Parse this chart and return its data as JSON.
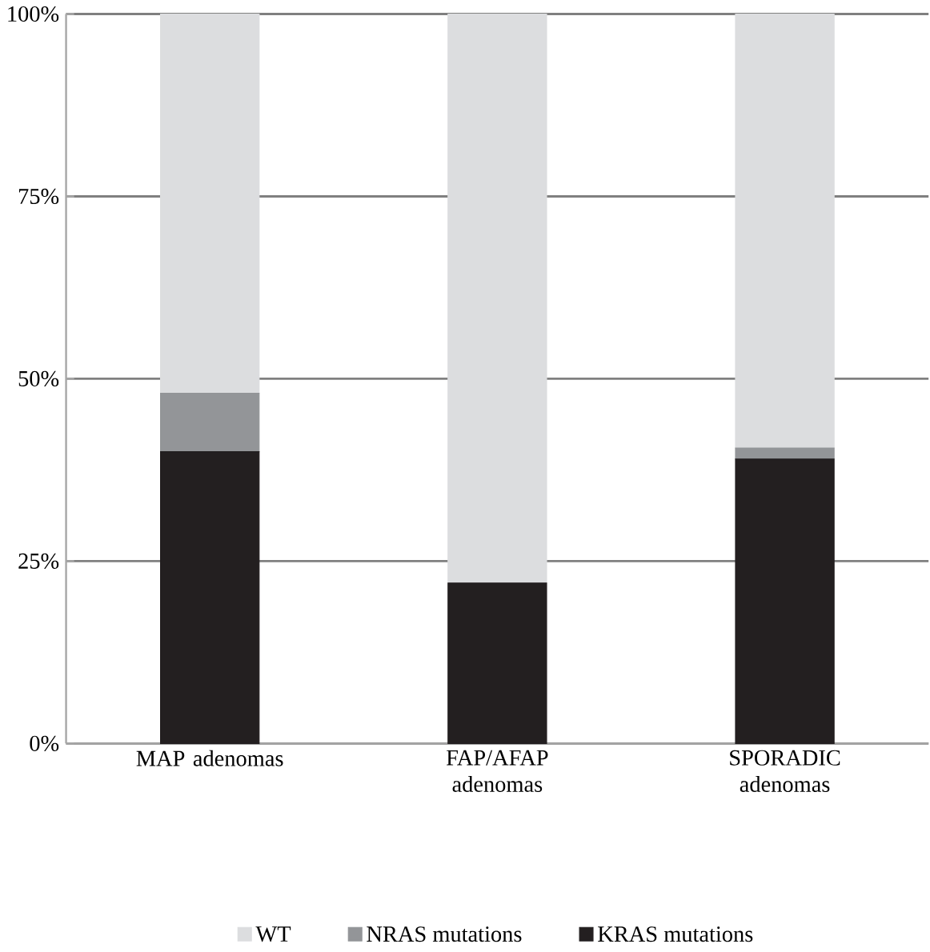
{
  "chart_data": {
    "type": "bar",
    "stacked": true,
    "categories": [
      "MAP adenomas",
      "FAP/AFAP adenomas",
      "SPORADIC adenomas"
    ],
    "series": [
      {
        "name": "KRAS mutations",
        "color": "#231f20",
        "values": [
          40,
          22,
          39
        ]
      },
      {
        "name": "NRAS mutations",
        "color": "#939598",
        "values": [
          8,
          0,
          1.5
        ]
      },
      {
        "name": "WT",
        "color": "#dcdddf",
        "values": [
          52,
          78,
          59.5
        ]
      }
    ],
    "ylim": [
      0,
      100
    ],
    "yticks": [
      {
        "value": 0,
        "label": "0%"
      },
      {
        "value": 25,
        "label": "25%"
      },
      {
        "value": 50,
        "label": "50%"
      },
      {
        "value": 75,
        "label": "75%"
      },
      {
        "value": 100,
        "label": "100%"
      }
    ],
    "grid": "y",
    "legend": "bottom"
  }
}
